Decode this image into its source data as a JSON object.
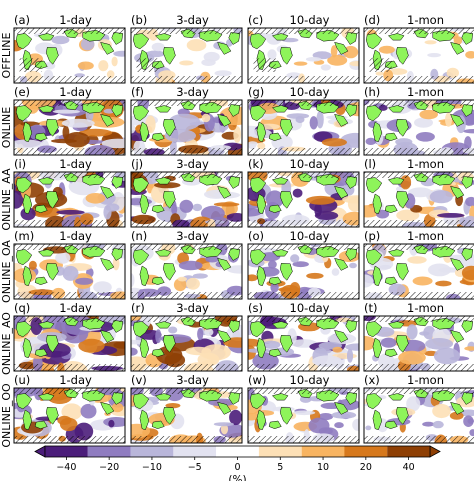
{
  "chart_data": {
    "type": "heatmap",
    "title": "",
    "unit_label": "(%)",
    "columns": [
      "1-day",
      "3-day",
      "10-day",
      "1-mon"
    ],
    "rows": [
      "OFFLINE",
      "ONLINE",
      "ONLINE_AA",
      "ONLINE_OA",
      "ONLINE_AO",
      "ONLINE_OO"
    ],
    "panel_labels": [
      [
        "(a)",
        "(b)",
        "(c)",
        "(d)"
      ],
      [
        "(e)",
        "(f)",
        "(g)",
        "(h)"
      ],
      [
        "(i)",
        "(j)",
        "(k)",
        "(l)"
      ],
      [
        "(m)",
        "(n)",
        "(o)",
        "(p)"
      ],
      [
        "(q)",
        "(r)",
        "(s)",
        "(t)"
      ],
      [
        "(u)",
        "(v)",
        "(w)",
        "(x)"
      ]
    ],
    "panel_map_type": "global map (relative difference field)",
    "colorbar": {
      "ticks": [
        -40,
        -20,
        -10,
        -5,
        0,
        5,
        10,
        20,
        40
      ],
      "tick_labels": [
        "−40",
        "−20",
        "−10",
        "−5",
        "0",
        "5",
        "10",
        "20",
        "40"
      ],
      "colors": [
        "#4b1d7a",
        "#8f7cc0",
        "#b9b6da",
        "#e2e2f0",
        "#ffffff",
        "#fde0b6",
        "#f8b461",
        "#d6781c",
        "#8e3f04"
      ],
      "extend": "both"
    },
    "colors": {
      "land": "#8ef45a",
      "frame": "#000000",
      "ocean_neutral": "#ffffff"
    }
  }
}
